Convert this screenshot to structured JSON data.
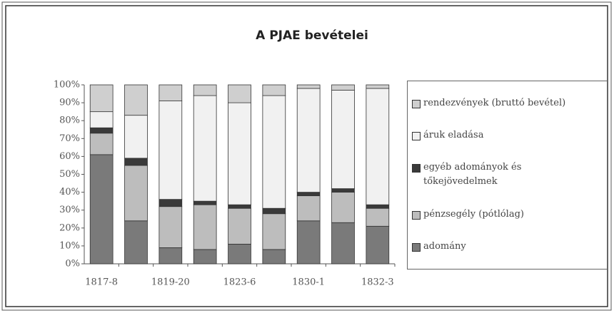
{
  "chart_data": {
    "type": "stacked_bar_100",
    "title": "A PJAE bevételei",
    "categories": [
      "1817-8",
      null,
      "1819-20",
      null,
      "1823-6",
      null,
      "1830-1",
      null,
      "1832-3"
    ],
    "series": [
      {
        "name": "adomány",
        "color": "#7a7a7a",
        "values": [
          61,
          24,
          9,
          8,
          11,
          8,
          24,
          23,
          21
        ]
      },
      {
        "name": "pénzsegély (pótlólag)",
        "color": "#bdbdbd",
        "values": [
          12,
          31,
          23,
          25,
          20,
          20,
          14,
          17,
          10
        ]
      },
      {
        "name": "egyéb adományok és tőkejövedelmek",
        "color": "#3a3a3a",
        "values": [
          3,
          4,
          4,
          2,
          2,
          3,
          2,
          2,
          2
        ]
      },
      {
        "name": "áruk eladása",
        "color": "#f1f1f1",
        "values": [
          9,
          24,
          55,
          59,
          57,
          63,
          58,
          55,
          65
        ]
      },
      {
        "name": "rendezvények (bruttó bevétel)",
        "color": "#cfcfcf",
        "values": [
          15,
          17,
          9,
          6,
          10,
          6,
          2,
          3,
          2
        ]
      }
    ],
    "ylim": [
      0,
      100
    ],
    "yticks": [
      {
        "value": 0,
        "label": "0%"
      },
      {
        "value": 10,
        "label": "10%"
      },
      {
        "value": 20,
        "label": "20%"
      },
      {
        "value": 30,
        "label": "30%"
      },
      {
        "value": 40,
        "label": "40%"
      },
      {
        "value": 50,
        "label": "50%"
      },
      {
        "value": 60,
        "label": "60%"
      },
      {
        "value": 70,
        "label": "70%"
      },
      {
        "value": 80,
        "label": "80%"
      },
      {
        "value": 90,
        "label": "90%"
      },
      {
        "value": 100,
        "label": "100%"
      }
    ]
  }
}
